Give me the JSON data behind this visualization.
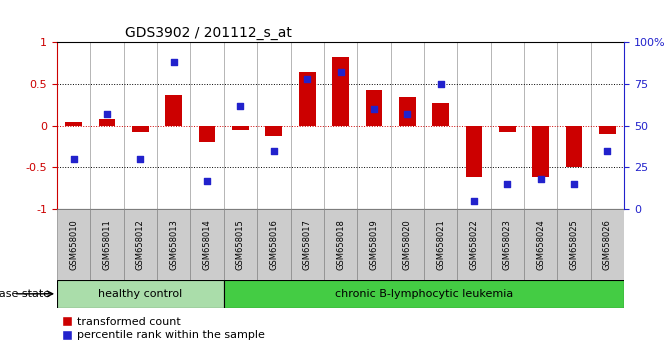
{
  "title": "GDS3902 / 201112_s_at",
  "samples": [
    "GSM658010",
    "GSM658011",
    "GSM658012",
    "GSM658013",
    "GSM658014",
    "GSM658015",
    "GSM658016",
    "GSM658017",
    "GSM658018",
    "GSM658019",
    "GSM658020",
    "GSM658021",
    "GSM658022",
    "GSM658023",
    "GSM658024",
    "GSM658025",
    "GSM658026"
  ],
  "red_bars": [
    0.05,
    0.08,
    -0.08,
    0.37,
    -0.2,
    -0.05,
    -0.13,
    0.65,
    0.82,
    0.43,
    0.35,
    0.27,
    -0.62,
    -0.08,
    -0.62,
    -0.5,
    -0.1
  ],
  "blue_dots_pct": [
    30,
    57,
    30,
    88,
    17,
    62,
    35,
    78,
    82,
    60,
    57,
    75,
    5,
    15,
    18,
    15,
    35
  ],
  "group_boundary": 5,
  "group1_label": "healthy control",
  "group2_label": "chronic B-lymphocytic leukemia",
  "disease_state_label": "disease state",
  "legend_red": "transformed count",
  "legend_blue": "percentile rank within the sample",
  "ylim_left": [
    -1.0,
    1.0
  ],
  "ylim_right": [
    0,
    100
  ],
  "yticks_left": [
    -1.0,
    -0.5,
    0.0,
    0.5,
    1.0
  ],
  "ytick_labels_left": [
    "-1",
    "-0.5",
    "0",
    "0.5",
    "1"
  ],
  "yticks_right": [
    0,
    25,
    50,
    75,
    100
  ],
  "ytick_labels_right": [
    "0",
    "25",
    "50",
    "75",
    "100%"
  ],
  "bar_color": "#cc0000",
  "dot_color": "#2222cc",
  "group1_color": "#aaddaa",
  "group2_color": "#44cc44",
  "bg_color": "#ffffff",
  "tick_label_color_left": "#cc0000",
  "tick_label_color_right": "#2222cc",
  "label_box_color": "#cccccc",
  "label_box_edge": "#888888"
}
